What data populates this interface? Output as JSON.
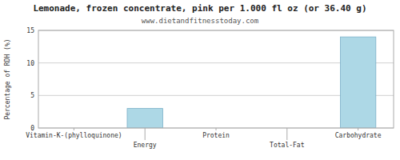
{
  "chart_data": {
    "type": "bar",
    "title": "Lemonade, frozen concentrate, pink per 1.000 fl oz (or 36.40 g)",
    "subtitle": "www.dietandfitnesstoday.com",
    "categories": [
      "Vitamin-K-(phylloquinone)",
      "Energy",
      "Protein",
      "Total-Fat",
      "Carbohydrate"
    ],
    "values": [
      0,
      3.0,
      0,
      0,
      14.0
    ],
    "color": "#add8e6",
    "ylabel": "Percentage of RDH (%)",
    "ylim": [
      0,
      15
    ],
    "yticks": [
      0,
      5,
      10,
      15
    ],
    "grid": true
  }
}
